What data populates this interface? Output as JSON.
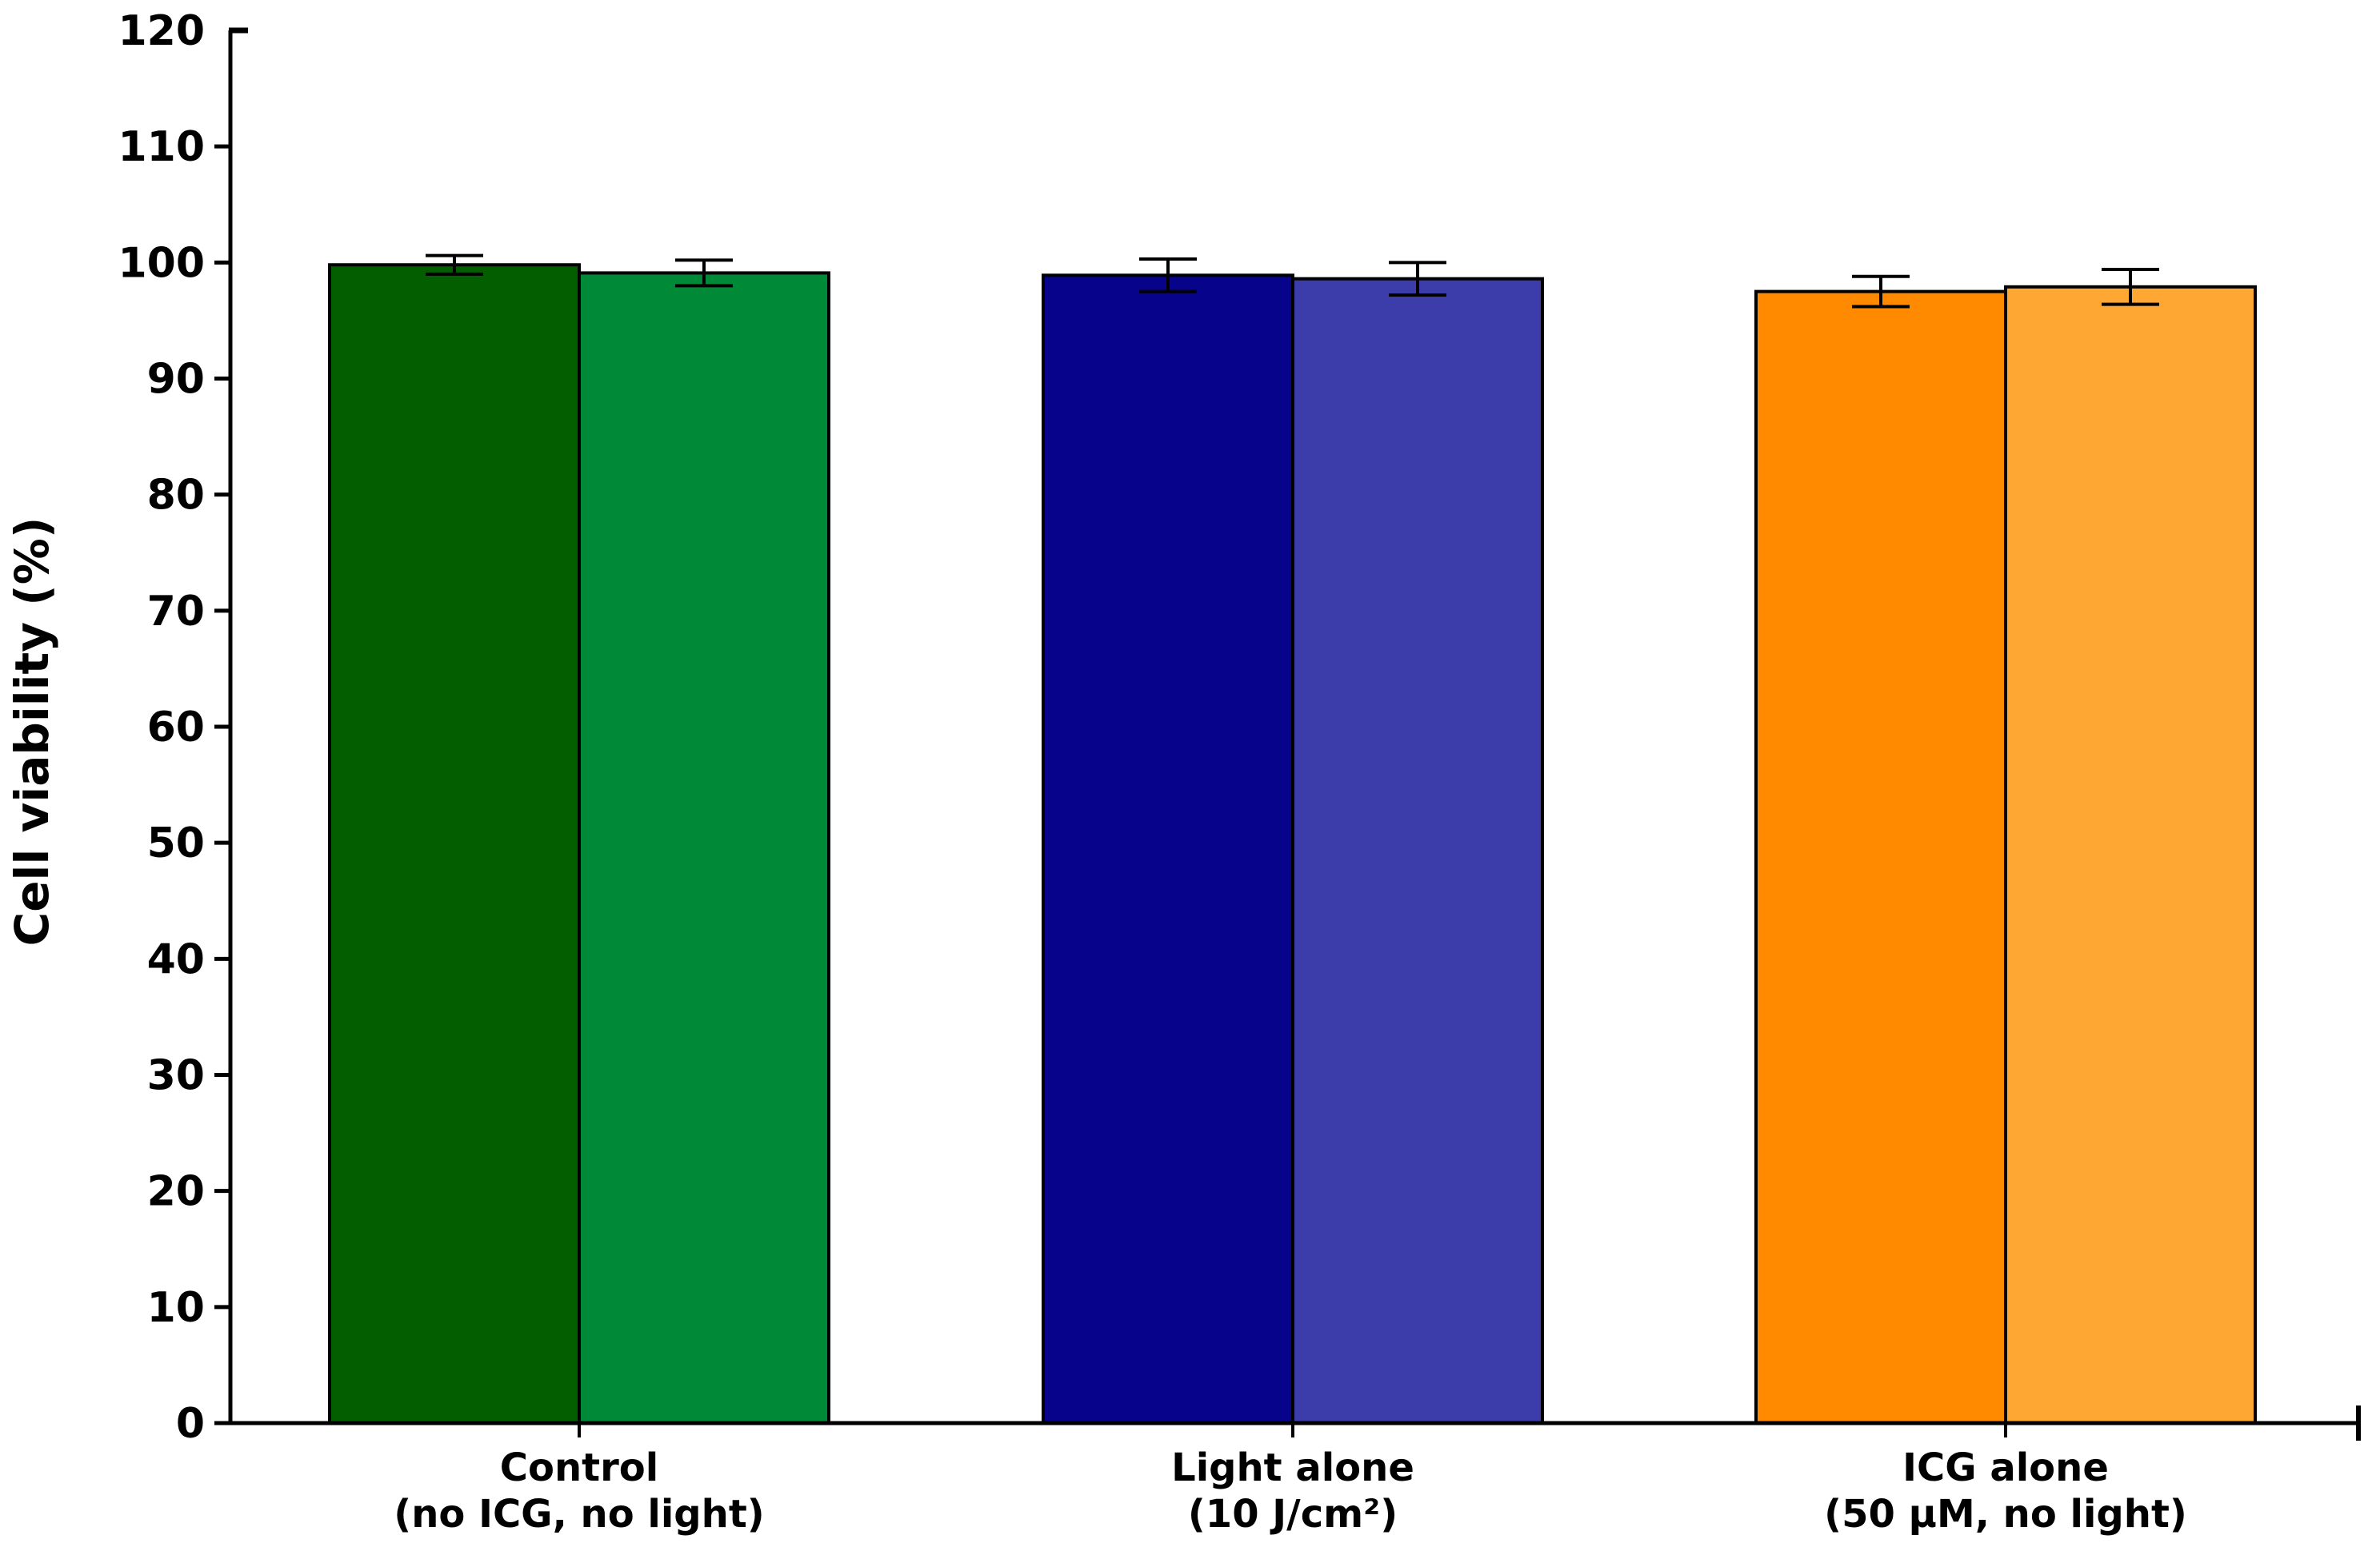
{
  "chart_data": {
    "type": "bar",
    "title": "",
    "xlabel": "",
    "ylabel": "Cell viability (%)",
    "ylim": [
      0,
      120
    ],
    "yticks": [
      0,
      10,
      20,
      30,
      40,
      50,
      60,
      70,
      80,
      90,
      100,
      110,
      120
    ],
    "grid": false,
    "legend": "none",
    "categories": [
      {
        "line1": "Control",
        "line2": "(no ICG, no light)"
      },
      {
        "line1": "Light alone",
        "line2": "(10 J/cm²)"
      },
      {
        "line1": "ICG alone",
        "line2": "(50 µM, no light)"
      }
    ],
    "bars": [
      {
        "category": 0,
        "slot": 0,
        "value": 99.8,
        "error": 0.8,
        "color": "#035E00"
      },
      {
        "category": 0,
        "slot": 1,
        "value": 99.1,
        "error": 1.1,
        "color": "#008A37"
      },
      {
        "category": 1,
        "slot": 0,
        "value": 98.9,
        "error": 1.4,
        "color": "#07038A"
      },
      {
        "category": 1,
        "slot": 1,
        "value": 98.6,
        "error": 1.4,
        "color": "#3C3DAA"
      },
      {
        "category": 2,
        "slot": 0,
        "value": 97.5,
        "error": 1.3,
        "color": "#FF8A00"
      },
      {
        "category": 2,
        "slot": 1,
        "value": 97.9,
        "error": 1.5,
        "color": "#FFA733"
      }
    ]
  }
}
